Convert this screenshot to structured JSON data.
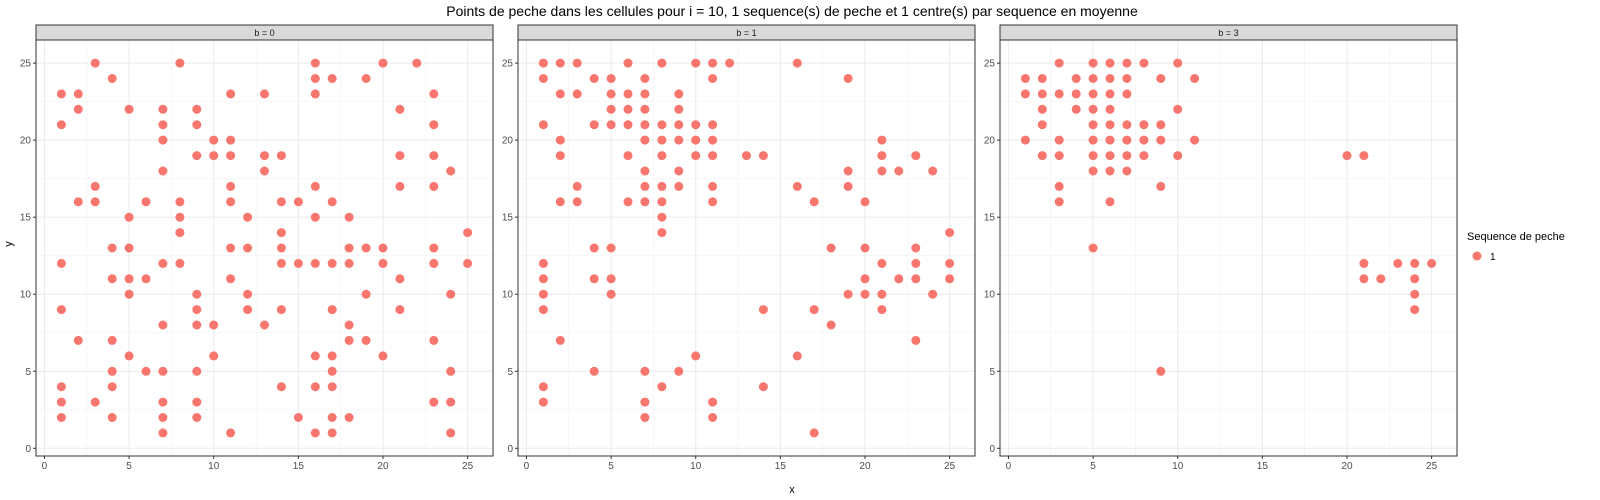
{
  "chart_data": {
    "type": "scatter",
    "title": "Points de peche dans les cellules pour i = 10, 1 sequence(s) de peche et 1 centre(s) par sequence en moyenne",
    "xlabel": "x",
    "ylabel": "y",
    "xlim": [
      -0.5,
      26.5
    ],
    "ylim": [
      -0.5,
      26.5
    ],
    "xticks": [
      0,
      5,
      10,
      15,
      20,
      25
    ],
    "yticks": [
      0,
      5,
      10,
      15,
      20,
      25
    ],
    "grid": true,
    "legend": {
      "title": "Sequence de peche",
      "entries": [
        "1"
      ],
      "placement": "right"
    },
    "point_color": "#F8766D",
    "facets": [
      {
        "label": "b = 0",
        "points": [
          [
            1,
            23
          ],
          [
            1,
            21
          ],
          [
            1,
            12
          ],
          [
            1,
            9
          ],
          [
            1,
            4
          ],
          [
            1,
            3
          ],
          [
            1,
            2
          ],
          [
            2,
            23
          ],
          [
            2,
            22
          ],
          [
            2,
            16
          ],
          [
            2,
            7
          ],
          [
            3,
            25
          ],
          [
            3,
            17
          ],
          [
            3,
            16
          ],
          [
            3,
            3
          ],
          [
            4,
            24
          ],
          [
            4,
            13
          ],
          [
            4,
            11
          ],
          [
            4,
            7
          ],
          [
            4,
            5
          ],
          [
            4,
            4
          ],
          [
            4,
            2
          ],
          [
            5,
            22
          ],
          [
            5,
            15
          ],
          [
            5,
            13
          ],
          [
            5,
            11
          ],
          [
            5,
            10
          ],
          [
            5,
            6
          ],
          [
            6,
            16
          ],
          [
            6,
            11
          ],
          [
            6,
            5
          ],
          [
            7,
            22
          ],
          [
            7,
            21
          ],
          [
            7,
            20
          ],
          [
            7,
            18
          ],
          [
            7,
            12
          ],
          [
            7,
            8
          ],
          [
            7,
            5
          ],
          [
            7,
            3
          ],
          [
            7,
            2
          ],
          [
            7,
            1
          ],
          [
            8,
            25
          ],
          [
            8,
            16
          ],
          [
            8,
            15
          ],
          [
            8,
            14
          ],
          [
            8,
            12
          ],
          [
            9,
            22
          ],
          [
            9,
            21
          ],
          [
            9,
            19
          ],
          [
            9,
            10
          ],
          [
            9,
            9
          ],
          [
            9,
            8
          ],
          [
            9,
            5
          ],
          [
            9,
            3
          ],
          [
            9,
            2
          ],
          [
            10,
            20
          ],
          [
            10,
            19
          ],
          [
            10,
            8
          ],
          [
            10,
            6
          ],
          [
            11,
            23
          ],
          [
            11,
            20
          ],
          [
            11,
            19
          ],
          [
            11,
            17
          ],
          [
            11,
            16
          ],
          [
            11,
            13
          ],
          [
            11,
            11
          ],
          [
            11,
            1
          ],
          [
            12,
            15
          ],
          [
            12,
            13
          ],
          [
            12,
            10
          ],
          [
            12,
            9
          ],
          [
            13,
            23
          ],
          [
            13,
            19
          ],
          [
            13,
            18
          ],
          [
            13,
            8
          ],
          [
            14,
            19
          ],
          [
            14,
            16
          ],
          [
            14,
            14
          ],
          [
            14,
            13
          ],
          [
            14,
            12
          ],
          [
            14,
            9
          ],
          [
            14,
            4
          ],
          [
            15,
            16
          ],
          [
            15,
            12
          ],
          [
            15,
            2
          ],
          [
            16,
            25
          ],
          [
            16,
            24
          ],
          [
            16,
            23
          ],
          [
            16,
            17
          ],
          [
            16,
            15
          ],
          [
            16,
            12
          ],
          [
            16,
            6
          ],
          [
            16,
            4
          ],
          [
            16,
            1
          ],
          [
            17,
            24
          ],
          [
            17,
            16
          ],
          [
            17,
            12
          ],
          [
            17,
            9
          ],
          [
            17,
            6
          ],
          [
            17,
            5
          ],
          [
            17,
            4
          ],
          [
            17,
            2
          ],
          [
            17,
            1
          ],
          [
            18,
            15
          ],
          [
            18,
            13
          ],
          [
            18,
            12
          ],
          [
            18,
            8
          ],
          [
            18,
            7
          ],
          [
            18,
            2
          ],
          [
            19,
            24
          ],
          [
            19,
            13
          ],
          [
            19,
            10
          ],
          [
            19,
            7
          ],
          [
            20,
            25
          ],
          [
            20,
            13
          ],
          [
            20,
            12
          ],
          [
            20,
            6
          ],
          [
            21,
            22
          ],
          [
            21,
            19
          ],
          [
            21,
            17
          ],
          [
            21,
            11
          ],
          [
            21,
            9
          ],
          [
            22,
            25
          ],
          [
            23,
            23
          ],
          [
            23,
            21
          ],
          [
            23,
            19
          ],
          [
            23,
            17
          ],
          [
            23,
            13
          ],
          [
            23,
            12
          ],
          [
            23,
            7
          ],
          [
            23,
            3
          ],
          [
            24,
            18
          ],
          [
            24,
            10
          ],
          [
            24,
            5
          ],
          [
            24,
            3
          ],
          [
            24,
            1
          ],
          [
            25,
            14
          ],
          [
            25,
            12
          ]
        ]
      },
      {
        "label": "b = 1",
        "points": [
          [
            1,
            25
          ],
          [
            1,
            24
          ],
          [
            1,
            21
          ],
          [
            1,
            12
          ],
          [
            1,
            11
          ],
          [
            1,
            10
          ],
          [
            1,
            9
          ],
          [
            1,
            4
          ],
          [
            1,
            3
          ],
          [
            2,
            25
          ],
          [
            2,
            23
          ],
          [
            2,
            20
          ],
          [
            2,
            19
          ],
          [
            2,
            16
          ],
          [
            2,
            7
          ],
          [
            3,
            25
          ],
          [
            3,
            23
          ],
          [
            3,
            17
          ],
          [
            3,
            16
          ],
          [
            4,
            24
          ],
          [
            4,
            21
          ],
          [
            4,
            13
          ],
          [
            4,
            11
          ],
          [
            4,
            5
          ],
          [
            5,
            24
          ],
          [
            5,
            23
          ],
          [
            5,
            22
          ],
          [
            5,
            21
          ],
          [
            5,
            13
          ],
          [
            5,
            11
          ],
          [
            5,
            10
          ],
          [
            6,
            25
          ],
          [
            6,
            23
          ],
          [
            6,
            22
          ],
          [
            6,
            21
          ],
          [
            6,
            19
          ],
          [
            6,
            16
          ],
          [
            7,
            24
          ],
          [
            7,
            23
          ],
          [
            7,
            22
          ],
          [
            7,
            21
          ],
          [
            7,
            20
          ],
          [
            7,
            18
          ],
          [
            7,
            17
          ],
          [
            7,
            16
          ],
          [
            7,
            5
          ],
          [
            7,
            3
          ],
          [
            7,
            2
          ],
          [
            8,
            25
          ],
          [
            8,
            21
          ],
          [
            8,
            20
          ],
          [
            8,
            19
          ],
          [
            8,
            17
          ],
          [
            8,
            16
          ],
          [
            8,
            15
          ],
          [
            8,
            14
          ],
          [
            8,
            4
          ],
          [
            9,
            23
          ],
          [
            9,
            22
          ],
          [
            9,
            21
          ],
          [
            9,
            20
          ],
          [
            9,
            18
          ],
          [
            9,
            17
          ],
          [
            9,
            5
          ],
          [
            10,
            25
          ],
          [
            10,
            21
          ],
          [
            10,
            20
          ],
          [
            10,
            19
          ],
          [
            10,
            6
          ],
          [
            11,
            25
          ],
          [
            11,
            24
          ],
          [
            11,
            21
          ],
          [
            11,
            20
          ],
          [
            11,
            19
          ],
          [
            11,
            17
          ],
          [
            11,
            16
          ],
          [
            11,
            3
          ],
          [
            11,
            2
          ],
          [
            12,
            25
          ],
          [
            13,
            19
          ],
          [
            14,
            19
          ],
          [
            14,
            9
          ],
          [
            14,
            4
          ],
          [
            16,
            25
          ],
          [
            16,
            17
          ],
          [
            16,
            6
          ],
          [
            17,
            16
          ],
          [
            17,
            9
          ],
          [
            17,
            1
          ],
          [
            18,
            13
          ],
          [
            18,
            8
          ],
          [
            19,
            24
          ],
          [
            19,
            18
          ],
          [
            19,
            17
          ],
          [
            19,
            10
          ],
          [
            20,
            16
          ],
          [
            20,
            13
          ],
          [
            20,
            11
          ],
          [
            20,
            10
          ],
          [
            21,
            20
          ],
          [
            21,
            19
          ],
          [
            21,
            18
          ],
          [
            21,
            12
          ],
          [
            21,
            10
          ],
          [
            21,
            9
          ],
          [
            22,
            18
          ],
          [
            22,
            11
          ],
          [
            23,
            19
          ],
          [
            23,
            13
          ],
          [
            23,
            12
          ],
          [
            23,
            11
          ],
          [
            23,
            7
          ],
          [
            24,
            18
          ],
          [
            24,
            10
          ],
          [
            25,
            14
          ],
          [
            25,
            12
          ],
          [
            25,
            11
          ]
        ]
      },
      {
        "label": "b = 3",
        "points": [
          [
            1,
            24
          ],
          [
            1,
            23
          ],
          [
            1,
            20
          ],
          [
            2,
            24
          ],
          [
            2,
            23
          ],
          [
            2,
            22
          ],
          [
            2,
            21
          ],
          [
            2,
            19
          ],
          [
            3,
            25
          ],
          [
            3,
            23
          ],
          [
            3,
            20
          ],
          [
            3,
            19
          ],
          [
            3,
            17
          ],
          [
            3,
            16
          ],
          [
            4,
            24
          ],
          [
            4,
            23
          ],
          [
            4,
            22
          ],
          [
            5,
            25
          ],
          [
            5,
            24
          ],
          [
            5,
            23
          ],
          [
            5,
            22
          ],
          [
            5,
            21
          ],
          [
            5,
            20
          ],
          [
            5,
            19
          ],
          [
            5,
            18
          ],
          [
            5,
            13
          ],
          [
            6,
            25
          ],
          [
            6,
            24
          ],
          [
            6,
            23
          ],
          [
            6,
            22
          ],
          [
            6,
            21
          ],
          [
            6,
            20
          ],
          [
            6,
            19
          ],
          [
            6,
            18
          ],
          [
            6,
            16
          ],
          [
            7,
            25
          ],
          [
            7,
            24
          ],
          [
            7,
            23
          ],
          [
            7,
            21
          ],
          [
            7,
            20
          ],
          [
            7,
            19
          ],
          [
            7,
            18
          ],
          [
            8,
            25
          ],
          [
            8,
            21
          ],
          [
            8,
            20
          ],
          [
            8,
            19
          ],
          [
            9,
            24
          ],
          [
            9,
            21
          ],
          [
            9,
            20
          ],
          [
            9,
            17
          ],
          [
            9,
            5
          ],
          [
            10,
            25
          ],
          [
            10,
            22
          ],
          [
            10,
            19
          ],
          [
            11,
            24
          ],
          [
            11,
            20
          ],
          [
            20,
            19
          ],
          [
            21,
            19
          ],
          [
            21,
            12
          ],
          [
            21,
            11
          ],
          [
            22,
            11
          ],
          [
            23,
            12
          ],
          [
            24,
            12
          ],
          [
            24,
            11
          ],
          [
            24,
            10
          ],
          [
            24,
            9
          ],
          [
            25,
            12
          ]
        ]
      }
    ]
  }
}
